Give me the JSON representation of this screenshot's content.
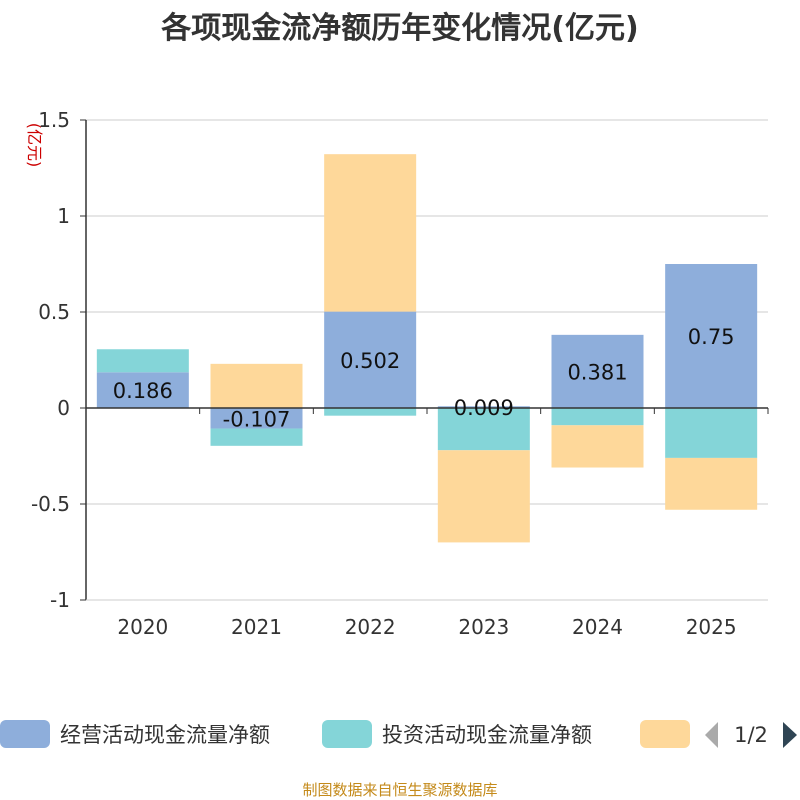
{
  "chart_data": {
    "type": "bar",
    "stacked": true,
    "title": "各项现金流净额历年变化情况(亿元)",
    "unit_label": "(亿元)",
    "categories": [
      "2020",
      "2021",
      "2022",
      "2023",
      "2024",
      "2025"
    ],
    "ylim": [
      -1,
      1.5
    ],
    "yticks": [
      {
        "value": 1.5,
        "label": "1.5"
      },
      {
        "value": 1,
        "label": "1"
      },
      {
        "value": 0.5,
        "label": "0.5"
      },
      {
        "value": 0,
        "label": "0"
      },
      {
        "value": -0.5,
        "label": "-0.5"
      },
      {
        "value": -1,
        "label": "-1"
      }
    ],
    "grid": true,
    "series": [
      {
        "name": "经营活动现金流量净额",
        "color": "#8eaedb",
        "values": [
          0.186,
          -0.107,
          0.502,
          0.009,
          0.381,
          0.75
        ],
        "labels": [
          "0.186",
          "-0.107",
          "0.502",
          "0.009",
          "0.381",
          "0.75"
        ]
      },
      {
        "name": "投资活动现金流量净额",
        "color": "#84d5d8",
        "values": [
          0.12,
          -0.09,
          -0.04,
          -0.22,
          -0.09,
          -0.26
        ]
      },
      {
        "name": "",
        "color": "#fed89a",
        "values": [
          0,
          0.23,
          0.82,
          -0.48,
          -0.22,
          -0.27
        ]
      }
    ],
    "legend_position": "bottom",
    "legend_page": "1/2"
  },
  "footer": "制图数据来自恒生聚源数据库",
  "colors": {
    "axis": "#333333",
    "grid": "#cccccc"
  }
}
